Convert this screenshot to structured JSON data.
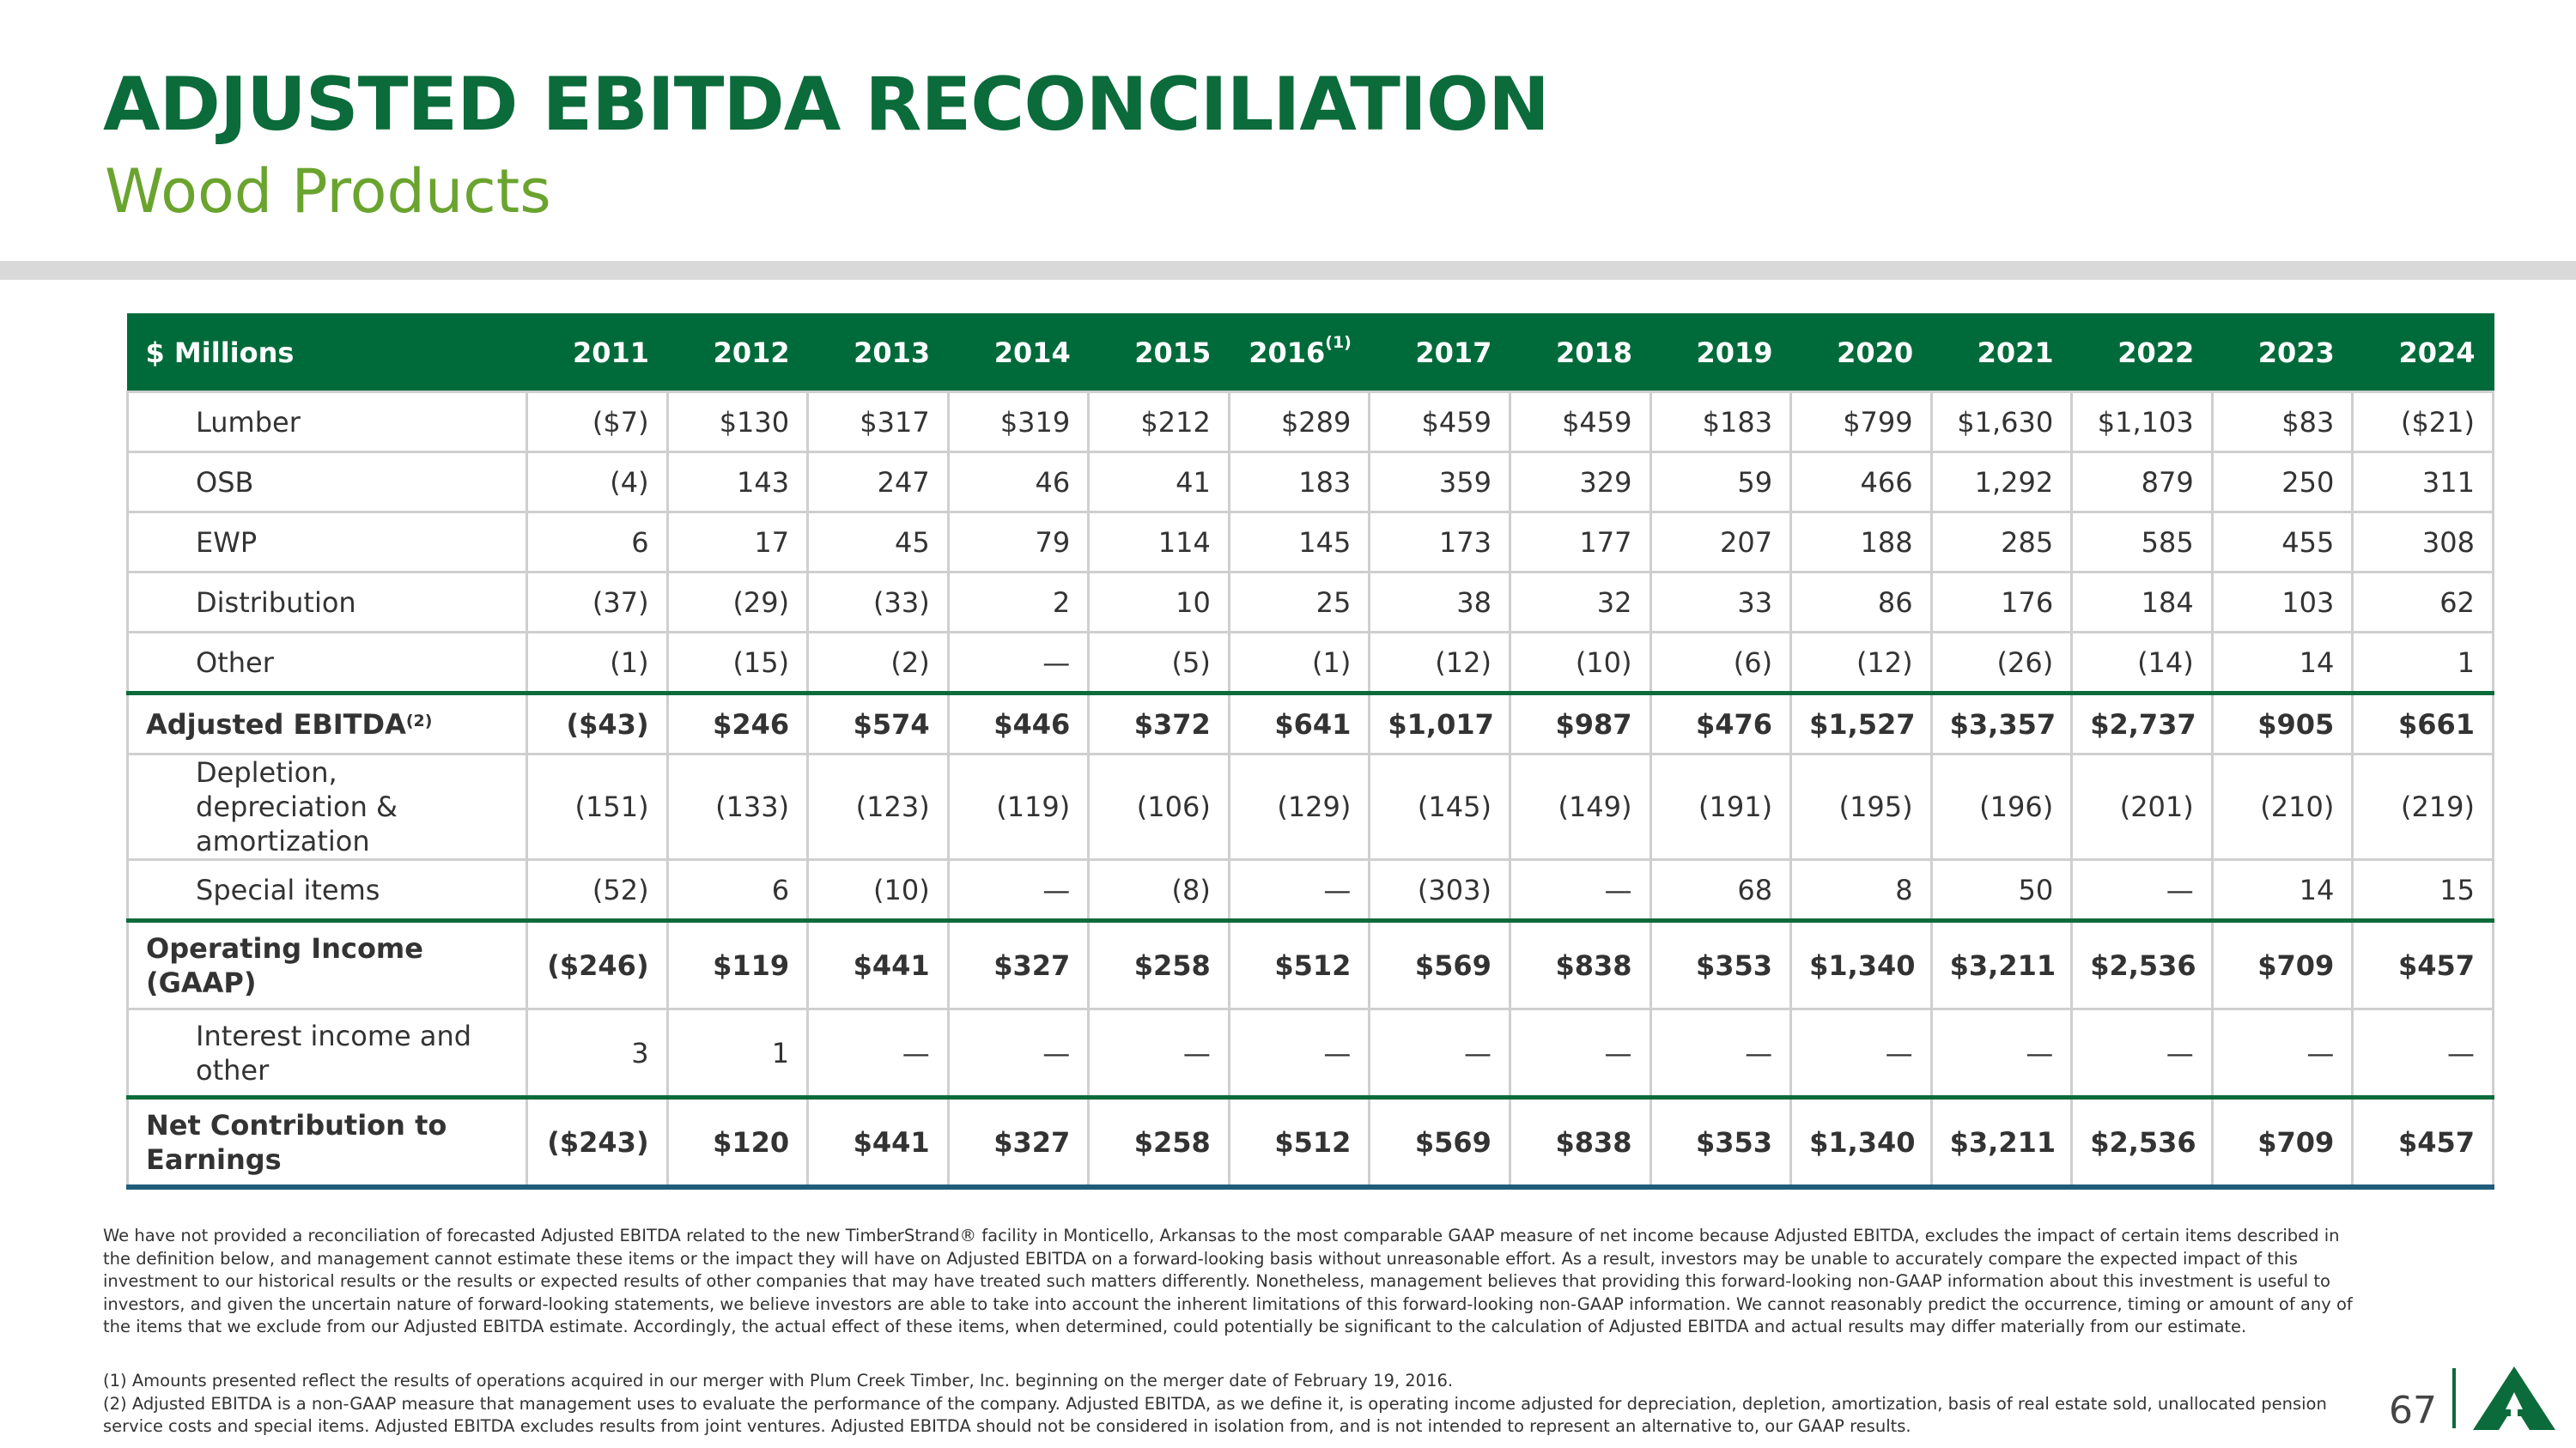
{
  "header": {
    "title": "ADJUSTED EBITDA RECONCILIATION",
    "subtitle": "Wood Products"
  },
  "table": {
    "corner_label": "$ Millions",
    "years": [
      "2011",
      "2012",
      "2013",
      "2014",
      "2015",
      "2016",
      "2017",
      "2018",
      "2019",
      "2020",
      "2021",
      "2022",
      "2023",
      "2024"
    ],
    "year_2016_footnote": "(1)",
    "rows": [
      {
        "label": "Lumber",
        "values": [
          "($7)",
          "$130",
          "$317",
          "$319",
          "$212",
          "$289",
          "$459",
          "$459",
          "$183",
          "$799",
          "$1,630",
          "$1,103",
          "$83",
          "($21)"
        ]
      },
      {
        "label": "OSB",
        "values": [
          "(4)",
          "143",
          "247",
          "46",
          "41",
          "183",
          "359",
          "329",
          "59",
          "466",
          "1,292",
          "879",
          "250",
          "311"
        ]
      },
      {
        "label": "EWP",
        "values": [
          "6",
          "17",
          "45",
          "79",
          "114",
          "145",
          "173",
          "177",
          "207",
          "188",
          "285",
          "585",
          "455",
          "308"
        ]
      },
      {
        "label": "Distribution",
        "values": [
          "(37)",
          "(29)",
          "(33)",
          "2",
          "10",
          "25",
          "38",
          "32",
          "33",
          "86",
          "176",
          "184",
          "103",
          "62"
        ]
      },
      {
        "label": "Other",
        "values": [
          "(1)",
          "(15)",
          "(2)",
          "—",
          "(5)",
          "(1)",
          "(12)",
          "(10)",
          "(6)",
          "(12)",
          "(26)",
          "(14)",
          "14",
          "1"
        ]
      },
      {
        "label": "Adjusted EBITDA",
        "footnote": "(2)",
        "values": [
          "($43)",
          "$246",
          "$574",
          "$446",
          "$372",
          "$641",
          "$1,017",
          "$987",
          "$476",
          "$1,527",
          "$3,357",
          "$2,737",
          "$905",
          "$661"
        ]
      },
      {
        "label": "Depletion, depreciation & amortization",
        "values": [
          "(151)",
          "(133)",
          "(123)",
          "(119)",
          "(106)",
          "(129)",
          "(145)",
          "(149)",
          "(191)",
          "(195)",
          "(196)",
          "(201)",
          "(210)",
          "(219)"
        ]
      },
      {
        "label": "Special items",
        "values": [
          "(52)",
          "6",
          "(10)",
          "—",
          "(8)",
          "—",
          "(303)",
          "—",
          "68",
          "8",
          "50",
          "—",
          "14",
          "15"
        ]
      },
      {
        "label": "Operating Income (GAAP)",
        "values": [
          "($246)",
          "$119",
          "$441",
          "$327",
          "$258",
          "$512",
          "$569",
          "$838",
          "$353",
          "$1,340",
          "$3,211",
          "$2,536",
          "$709",
          "$457"
        ]
      },
      {
        "label": "Interest income and other",
        "values": [
          "3",
          "1",
          "—",
          "—",
          "—",
          "—",
          "—",
          "—",
          "—",
          "—",
          "—",
          "—",
          "—",
          "—"
        ]
      },
      {
        "label": "Net Contribution to Earnings",
        "values": [
          "($243)",
          "$120",
          "$441",
          "$327",
          "$258",
          "$512",
          "$569",
          "$838",
          "$353",
          "$1,340",
          "$3,211",
          "$2,536",
          "$709",
          "$457"
        ]
      }
    ]
  },
  "disclaimer": "We have not provided a reconciliation of forecasted Adjusted EBITDA related to the new TimberStrand® facility in Monticello, Arkansas to the most comparable GAAP measure of net income because Adjusted EBITDA, excludes the impact of certain items described in the definition below, and management cannot estimate these items or the impact they will have on Adjusted EBITDA on a forward-looking basis without unreasonable effort. As a result, investors may be unable to accurately compare the expected impact of this investment to our historical results or the results or expected results of other companies that may have treated such matters differently. Nonetheless, management believes that providing this forward-looking non-GAAP information about this investment is useful to investors, and given the uncertain nature of forward-looking statements, we believe investors are able to take into account the inherent limitations of this forward-looking non-GAAP information. We cannot reasonably predict the occurrence, timing or amount of any of the items that we exclude from our Adjusted EBITDA estimate. Accordingly, the actual effect of these items, when determined, could potentially be significant to the calculation of Adjusted EBITDA and actual results may differ materially from our estimate.",
  "footnotes": [
    "(1) Amounts presented reflect the results of operations acquired in our merger with Plum Creek Timber, Inc. beginning on the merger date of February 19, 2016.",
    "(2) Adjusted EBITDA is a non-GAAP measure that management uses to evaluate the performance of the company. Adjusted EBITDA, as we define it, is operating income adjusted for depreciation, depletion, amortization, basis of real estate sold, unallocated pension service costs and special items. Adjusted EBITDA excludes results from joint ventures. Adjusted EBITDA should not be considered in isolation from, and is not intended to represent an alternative to, our GAAP results."
  ],
  "page_number": "67",
  "colors": {
    "header_green": "#006b3a",
    "title_green": "#0b6b3a",
    "subtitle_green": "#6aa42f",
    "bottom_rule": "#1f5c7a"
  },
  "logo_icon": "tree-logo-icon"
}
